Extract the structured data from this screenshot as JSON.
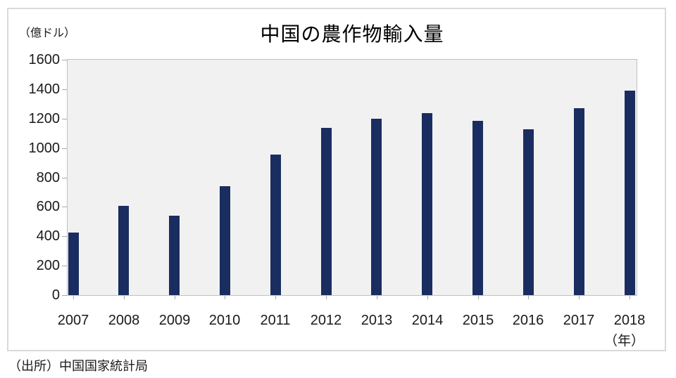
{
  "chart_data": {
    "type": "bar",
    "title": "中国の農作物輸入量",
    "unit_label": "（億ドル）",
    "x_axis_suffix": "（年）",
    "categories": [
      "2007",
      "2008",
      "2009",
      "2010",
      "2011",
      "2012",
      "2013",
      "2014",
      "2015",
      "2016",
      "2017",
      "2018"
    ],
    "values": [
      425,
      605,
      540,
      740,
      955,
      1135,
      1200,
      1235,
      1185,
      1125,
      1270,
      1390
    ],
    "xlabel": "",
    "ylabel": "",
    "ylim": [
      0,
      1600
    ],
    "ytick_step": 200,
    "grid": false,
    "legend": "none",
    "bar_color": "#1a2d60",
    "plot_bg_color": "#f1f1f1"
  },
  "source": {
    "label": "（出所）中国国家統計局"
  }
}
